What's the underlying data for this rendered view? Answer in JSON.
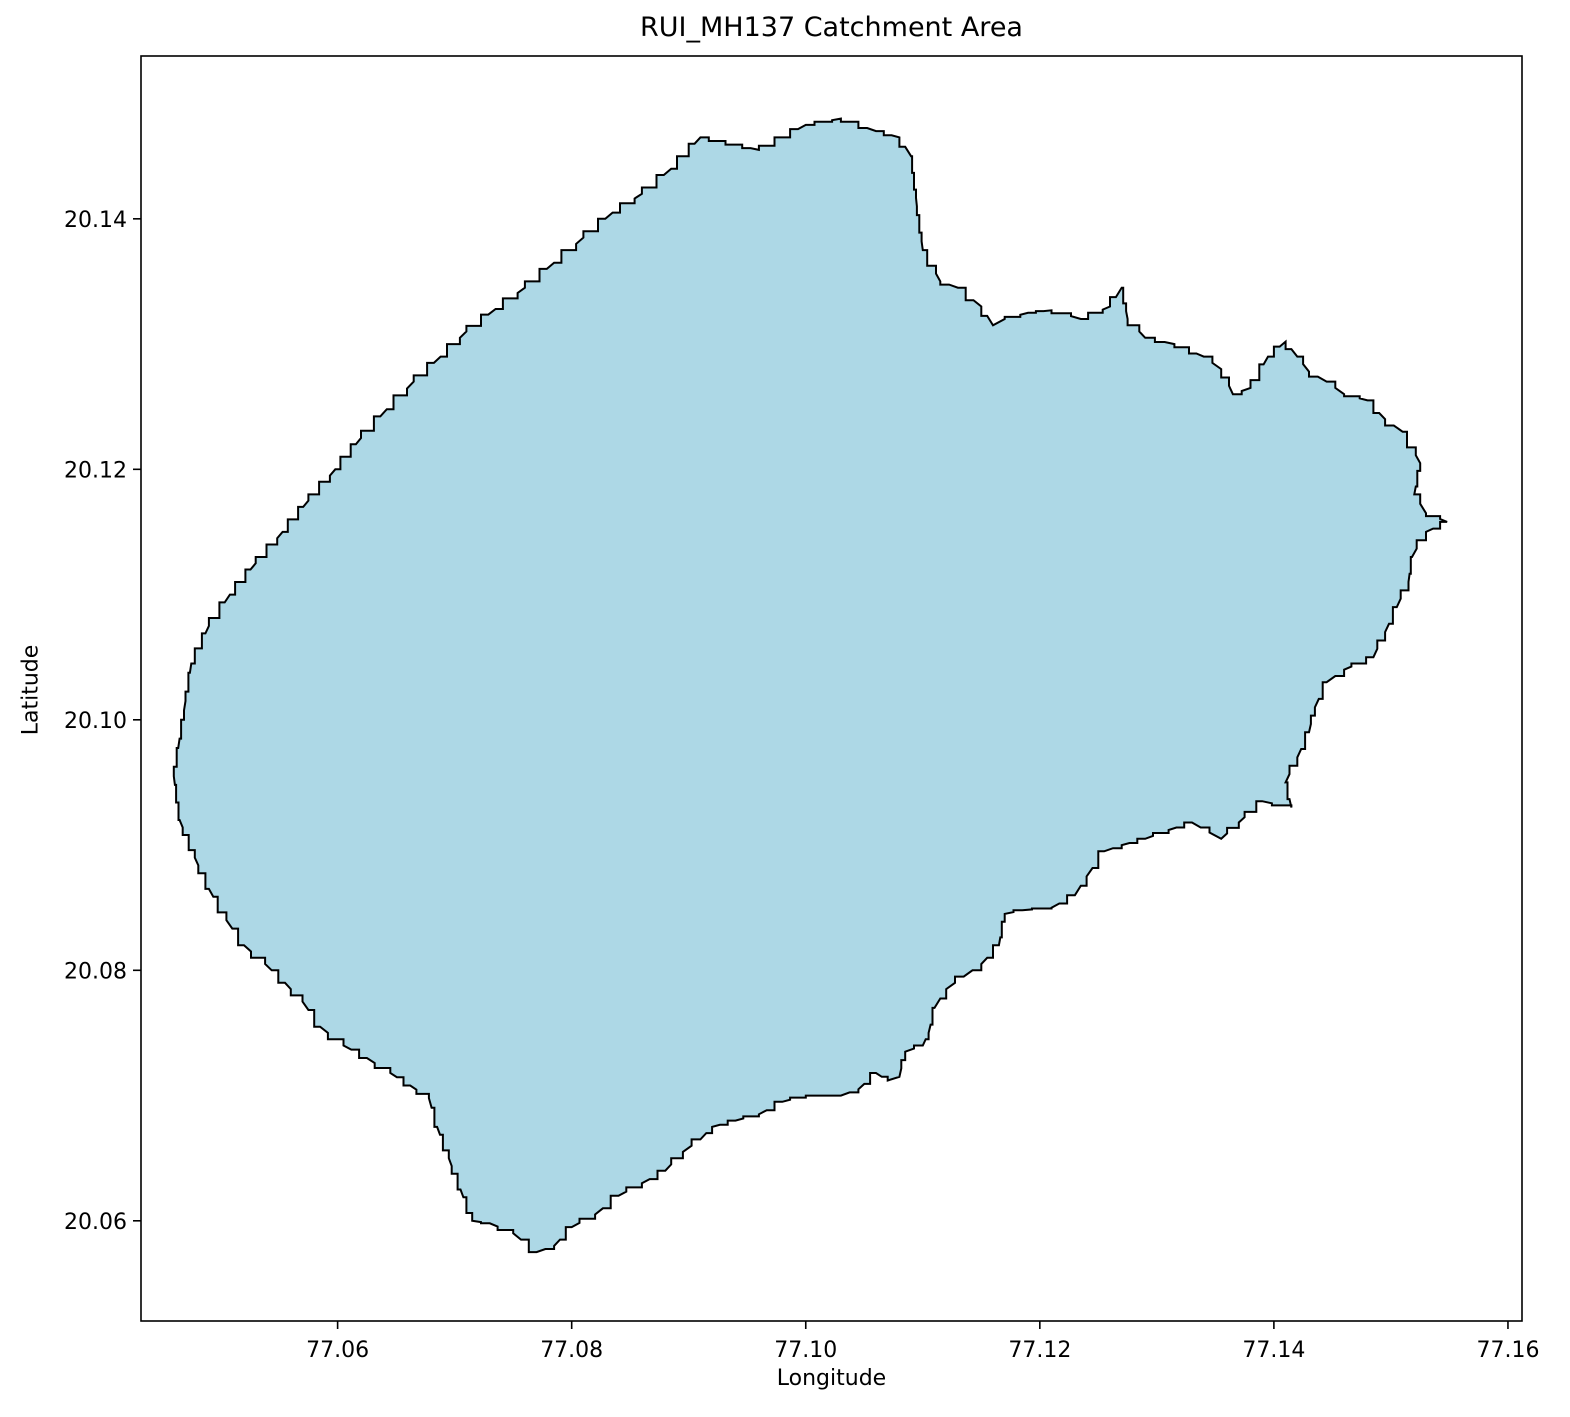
{
  "chart_data": {
    "type": "map",
    "title": "RUI_MH137 Catchment Area",
    "xlabel": "Longitude",
    "ylabel": "Latitude",
    "xlim": [
      77.0432,
      77.1612
    ],
    "ylim": [
      20.052,
      20.153
    ],
    "x_ticks": [
      "77.06",
      "77.08",
      "77.10",
      "77.12",
      "77.14",
      "77.16"
    ],
    "y_ticks": [
      "20.06",
      "20.08",
      "20.10",
      "20.12",
      "20.14"
    ],
    "x_tick_values": [
      77.06,
      77.08,
      77.1,
      77.12,
      77.14,
      77.16
    ],
    "y_tick_values": [
      20.06,
      20.08,
      20.1,
      20.12,
      20.14
    ],
    "grid": false,
    "colors": {
      "fill": "#add8e6",
      "edge": "#000000"
    },
    "polygon": [
      [
        77.091,
        20.1465
      ],
      [
        77.096,
        20.1455
      ],
      [
        77.1,
        20.1475
      ],
      [
        77.103,
        20.148
      ],
      [
        77.106,
        20.147
      ],
      [
        77.108,
        20.1465
      ],
      [
        77.109,
        20.145
      ],
      [
        77.1095,
        20.141
      ],
      [
        77.11,
        20.1375
      ],
      [
        77.1115,
        20.135
      ],
      [
        77.113,
        20.1345
      ],
      [
        77.115,
        20.133
      ],
      [
        77.116,
        20.1315
      ],
      [
        77.117,
        20.132
      ],
      [
        77.119,
        20.1325
      ],
      [
        77.121,
        20.1327
      ],
      [
        77.1235,
        20.132
      ],
      [
        77.126,
        20.133
      ],
      [
        77.127,
        20.1345
      ],
      [
        77.1275,
        20.132
      ],
      [
        77.129,
        20.1305
      ],
      [
        77.1315,
        20.13
      ],
      [
        77.134,
        20.129
      ],
      [
        77.1355,
        20.128
      ],
      [
        77.1365,
        20.126
      ],
      [
        77.138,
        20.1265
      ],
      [
        77.1395,
        20.129
      ],
      [
        77.141,
        20.1302
      ],
      [
        77.142,
        20.129
      ],
      [
        77.143,
        20.1278
      ],
      [
        77.1445,
        20.127
      ],
      [
        77.146,
        20.126
      ],
      [
        77.148,
        20.1255
      ],
      [
        77.1495,
        20.124
      ],
      [
        77.151,
        20.123
      ],
      [
        77.1525,
        20.1205
      ],
      [
        77.152,
        20.118
      ],
      [
        77.153,
        20.1165
      ],
      [
        77.1548,
        20.1158
      ],
      [
        77.153,
        20.115
      ],
      [
        77.1518,
        20.113
      ],
      [
        77.1515,
        20.111
      ],
      [
        77.1505,
        20.109
      ],
      [
        77.1495,
        20.107
      ],
      [
        77.1485,
        20.105
      ],
      [
        77.146,
        20.104
      ],
      [
        77.1445,
        20.103
      ],
      [
        77.1435,
        20.101
      ],
      [
        77.143,
        20.099
      ],
      [
        77.142,
        20.097
      ],
      [
        77.141,
        20.095
      ],
      [
        77.1415,
        20.093
      ],
      [
        77.139,
        20.0935
      ],
      [
        77.137,
        20.0918
      ],
      [
        77.1355,
        20.0905
      ],
      [
        77.1345,
        20.091
      ],
      [
        77.133,
        20.0918
      ],
      [
        77.131,
        20.0912
      ],
      [
        77.129,
        20.0905
      ],
      [
        77.127,
        20.09
      ],
      [
        77.1255,
        20.0895
      ],
      [
        77.124,
        20.0875
      ],
      [
        77.123,
        20.086
      ],
      [
        77.121,
        20.085
      ],
      [
        77.1185,
        20.0848
      ],
      [
        77.117,
        20.0845
      ],
      [
        77.1165,
        20.082
      ],
      [
        77.115,
        20.0805
      ],
      [
        77.1135,
        20.0795
      ],
      [
        77.112,
        20.0785
      ],
      [
        77.111,
        20.077
      ],
      [
        77.1105,
        20.075
      ],
      [
        77.11,
        20.074
      ],
      [
        77.1085,
        20.0735
      ],
      [
        77.108,
        20.0715
      ],
      [
        77.107,
        20.0712
      ],
      [
        77.106,
        20.0718
      ],
      [
        77.1045,
        20.0705
      ],
      [
        77.103,
        20.07
      ],
      [
        77.1,
        20.07
      ],
      [
        77.098,
        20.0695
      ],
      [
        77.096,
        20.0685
      ],
      [
        77.094,
        20.068
      ],
      [
        77.092,
        20.0675
      ],
      [
        77.091,
        20.0665
      ],
      [
        77.0895,
        20.0655
      ],
      [
        77.088,
        20.064
      ],
      [
        77.086,
        20.063
      ],
      [
        77.084,
        20.062
      ],
      [
        77.082,
        20.0605
      ],
      [
        77.08,
        20.0595
      ],
      [
        77.0785,
        20.058
      ],
      [
        77.077,
        20.0575
      ],
      [
        77.075,
        20.059
      ],
      [
        77.073,
        20.0598
      ],
      [
        77.0715,
        20.06
      ],
      [
        77.0705,
        20.0625
      ],
      [
        77.0695,
        20.065
      ],
      [
        77.0685,
        20.0675
      ],
      [
        77.0678,
        20.0698
      ],
      [
        77.0662,
        20.0708
      ],
      [
        77.0645,
        20.0718
      ],
      [
        77.0625,
        20.073
      ],
      [
        77.0605,
        20.074
      ],
      [
        77.0585,
        20.0755
      ],
      [
        77.057,
        20.0775
      ],
      [
        77.0555,
        20.079
      ],
      [
        77.0538,
        20.0805
      ],
      [
        77.052,
        20.082
      ],
      [
        77.0505,
        20.084
      ],
      [
        77.049,
        20.0865
      ],
      [
        77.0478,
        20.089
      ],
      [
        77.0465,
        20.092
      ],
      [
        77.046,
        20.0955
      ],
      [
        77.0465,
        20.0985
      ],
      [
        77.047,
        20.1015
      ],
      [
        77.0475,
        20.1045
      ],
      [
        77.049,
        20.1075
      ],
      [
        77.0508,
        20.11
      ],
      [
        77.053,
        20.1125
      ],
      [
        77.0553,
        20.115
      ],
      [
        77.0575,
        20.1175
      ],
      [
        77.0598,
        20.12
      ],
      [
        77.062,
        20.1225
      ],
      [
        77.0642,
        20.1248
      ],
      [
        77.0665,
        20.127
      ],
      [
        77.0688,
        20.129
      ],
      [
        77.071,
        20.131
      ],
      [
        77.0735,
        20.1328
      ],
      [
        77.076,
        20.1345
      ],
      [
        77.0785,
        20.1365
      ],
      [
        77.081,
        20.1385
      ],
      [
        77.0835,
        20.1405
      ],
      [
        77.086,
        20.142
      ],
      [
        77.0885,
        20.144
      ]
    ]
  }
}
